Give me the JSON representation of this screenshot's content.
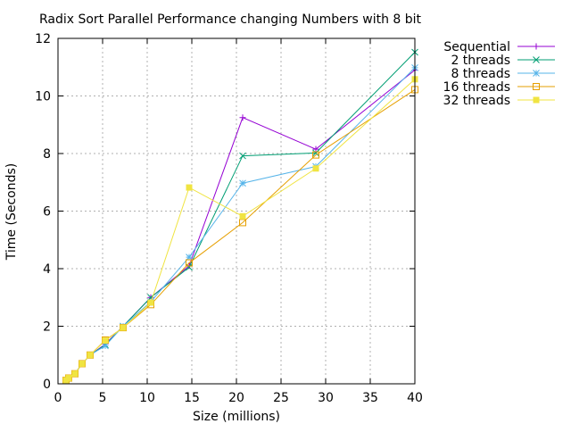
{
  "chart_data": {
    "type": "line",
    "title": "Radix Sort Parallel Performance changing Numbers with 8 bit",
    "xlabel": "Size (millions)",
    "ylabel": "Time (Seconds)",
    "xlim": [
      0,
      40
    ],
    "ylim": [
      0,
      12
    ],
    "xticks": [
      0,
      5,
      10,
      15,
      20,
      25,
      30,
      35,
      40
    ],
    "yticks": [
      0,
      2,
      4,
      6,
      8,
      10,
      12
    ],
    "grid": true,
    "legend_position": "outside-top-right",
    "series": [
      {
        "name": "Sequential",
        "color": "#9400d3",
        "marker": "plus",
        "x": [
          0.9,
          1.2,
          1.9,
          2.7,
          3.6,
          5.3,
          7.3,
          10.4,
          14.7,
          20.7,
          28.9,
          40
        ],
        "y": [
          0.12,
          0.2,
          0.35,
          0.7,
          1.0,
          1.38,
          2.0,
          3.0,
          4.1,
          9.25,
          8.15,
          10.9
        ]
      },
      {
        "name": "2 threads",
        "color": "#009e73",
        "marker": "cross",
        "x": [
          0.9,
          1.2,
          1.9,
          2.7,
          3.6,
          5.3,
          7.3,
          10.4,
          14.7,
          20.7,
          28.9,
          40
        ],
        "y": [
          0.12,
          0.2,
          0.35,
          0.7,
          1.0,
          1.35,
          2.0,
          3.0,
          4.05,
          7.92,
          8.02,
          11.52
        ]
      },
      {
        "name": "8 threads",
        "color": "#56b4e9",
        "marker": "star",
        "x": [
          0.9,
          1.2,
          1.9,
          2.7,
          3.6,
          5.3,
          7.3,
          10.4,
          14.7,
          20.7,
          28.9,
          40
        ],
        "y": [
          0.12,
          0.2,
          0.35,
          0.7,
          1.0,
          1.32,
          2.0,
          2.85,
          4.4,
          6.97,
          7.55,
          10.98
        ]
      },
      {
        "name": "16 threads",
        "color": "#e69f00",
        "marker": "square-open",
        "x": [
          0.9,
          1.2,
          1.9,
          2.7,
          3.6,
          5.3,
          7.3,
          10.4,
          14.7,
          20.7,
          28.9,
          40
        ],
        "y": [
          0.12,
          0.2,
          0.35,
          0.7,
          1.0,
          1.52,
          1.95,
          2.75,
          4.2,
          5.6,
          7.95,
          10.22
        ]
      },
      {
        "name": "32 threads",
        "color": "#f0e442",
        "marker": "square-filled",
        "x": [
          0.9,
          1.2,
          1.9,
          2.7,
          3.6,
          5.3,
          7.3,
          10.4,
          14.7,
          20.7,
          28.9,
          40
        ],
        "y": [
          0.12,
          0.2,
          0.35,
          0.7,
          1.0,
          1.5,
          1.95,
          2.82,
          6.82,
          5.82,
          7.48,
          10.58
        ]
      }
    ]
  }
}
